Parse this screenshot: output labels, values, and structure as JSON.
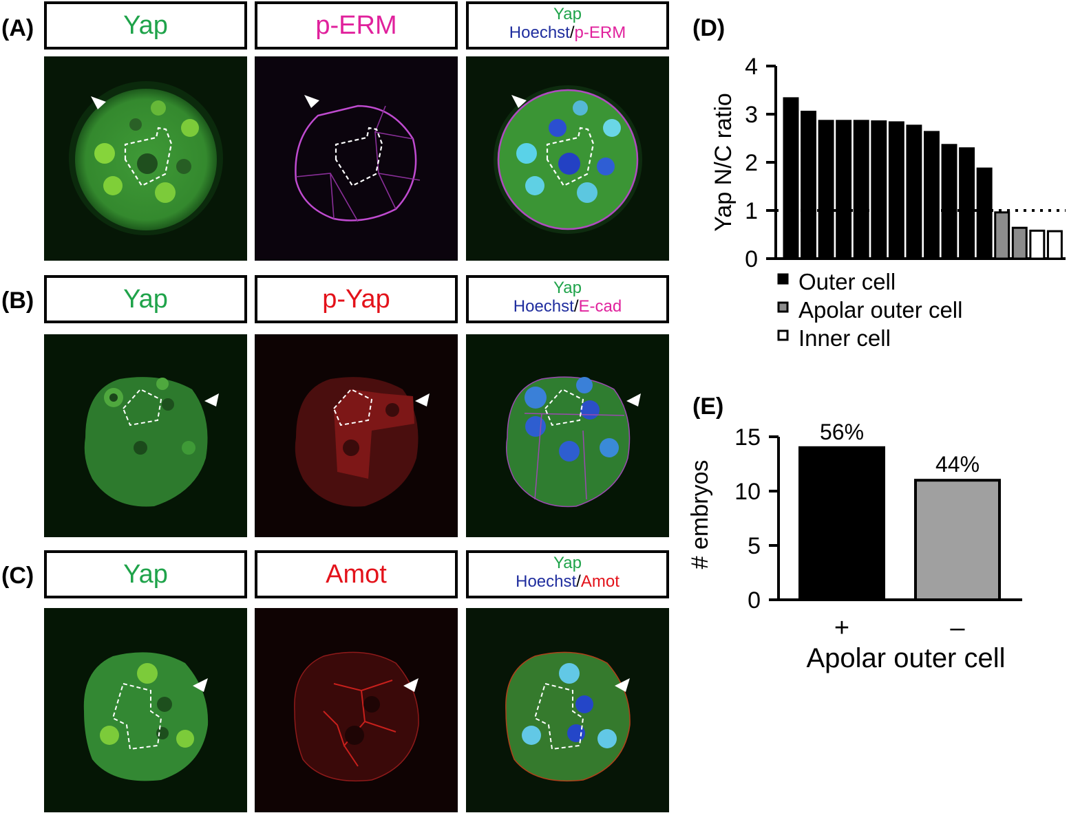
{
  "panels": {
    "A": {
      "label": "(A)",
      "headers": [
        "Yap",
        "p-ERM"
      ],
      "merge": {
        "line1": "Yap",
        "blue": "Hoechst",
        "sep": "/",
        "third": "p-ERM"
      }
    },
    "B": {
      "label": "(B)",
      "headers": [
        "Yap",
        "p-Yap"
      ],
      "merge": {
        "line1": "Yap",
        "blue": "Hoechst",
        "sep": "/",
        "third": "E-cad"
      }
    },
    "C": {
      "label": "(C)",
      "headers": [
        "Yap",
        "Amot"
      ],
      "merge": {
        "line1": "Yap",
        "blue": "Hoechst",
        "sep": "/",
        "third": "Amot"
      }
    },
    "D": {
      "label": "(D)"
    },
    "E": {
      "label": "(E)"
    }
  },
  "colors": {
    "green": "#1fa34a",
    "magenta": "#e0219c",
    "red": "#e3121a",
    "blue": "#1f2d9e"
  },
  "chart_data": [
    {
      "type": "bar",
      "panel": "D",
      "ylabel": "Yap N/C ratio",
      "ylim": [
        0,
        4
      ],
      "yticks": [
        0,
        1,
        2,
        3,
        4
      ],
      "reference_line": 1,
      "series": [
        {
          "name": "Outer cell",
          "color": "#000000",
          "values": [
            3.33,
            3.05,
            2.86,
            2.86,
            2.86,
            2.85,
            2.83,
            2.76,
            2.63,
            2.36,
            2.29,
            1.87
          ]
        },
        {
          "name": "Apolar outer cell",
          "color": "#8c8c8c",
          "values": [
            0.96,
            0.64
          ]
        },
        {
          "name": "Inner cell",
          "color": "#ffffff",
          "values": [
            0.58,
            0.57
          ]
        }
      ],
      "legend": [
        "Outer cell",
        "Apolar outer cell",
        "Inner cell"
      ]
    },
    {
      "type": "bar",
      "panel": "E",
      "categories": [
        "+",
        "–"
      ],
      "values": [
        14,
        11
      ],
      "bar_labels": [
        "56%",
        "44%"
      ],
      "colors": [
        "#000000",
        "#a0a0a0"
      ],
      "xlabel": "Apolar outer cell",
      "ylabel": "# embryos",
      "ylim": [
        0,
        15
      ],
      "yticks": [
        0,
        5,
        10,
        15
      ]
    }
  ]
}
